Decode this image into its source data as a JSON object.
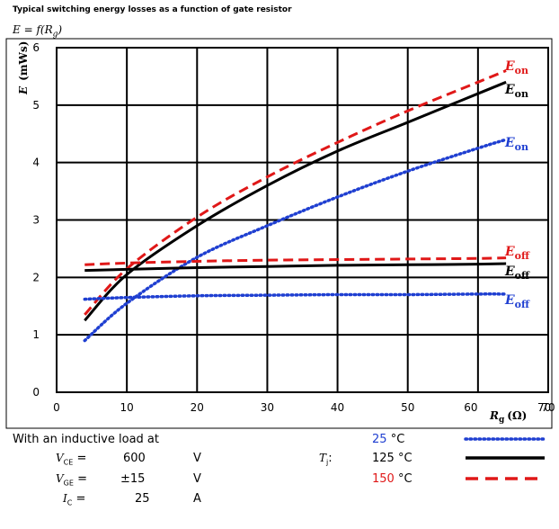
{
  "title": "Typical switching energy losses as a function of gate resistor",
  "function_label": "E = f(R g)",
  "chart_data": {
    "type": "line",
    "ylabel": "E (mWs)",
    "xlabel": "Rg (Ω)",
    "xlim": [
      0,
      70
    ],
    "ylim": [
      0,
      6
    ],
    "x_ticks": [
      0,
      10,
      20,
      30,
      40,
      50,
      60,
      70
    ],
    "y_ticks": [
      0,
      1,
      2,
      3,
      4,
      5,
      6
    ],
    "grid": true,
    "series": [
      {
        "name": "Eon",
        "temperature": "25 °C",
        "style": "dotted",
        "color": "#1f3fd1",
        "x": [
          4,
          10,
          20,
          30,
          40,
          50,
          60,
          64
        ],
        "y": [
          0.9,
          1.55,
          2.35,
          2.9,
          3.4,
          3.85,
          4.25,
          4.4
        ]
      },
      {
        "name": "Eon",
        "temperature": "125 °C",
        "style": "solid",
        "color": "#000000",
        "x": [
          4,
          10,
          20,
          30,
          40,
          50,
          60,
          64
        ],
        "y": [
          1.25,
          2.05,
          2.9,
          3.6,
          4.2,
          4.7,
          5.2,
          5.4
        ]
      },
      {
        "name": "Eon",
        "temperature": "150 °C",
        "style": "dashed",
        "color": "#e01818",
        "x": [
          4,
          10,
          20,
          30,
          40,
          50,
          60,
          64
        ],
        "y": [
          1.35,
          2.15,
          3.05,
          3.75,
          4.35,
          4.9,
          5.4,
          5.6
        ]
      },
      {
        "name": "Eoff",
        "temperature": "25 °C",
        "style": "dotted",
        "color": "#1f3fd1",
        "x": [
          4,
          10,
          20,
          30,
          40,
          50,
          60,
          64
        ],
        "y": [
          1.62,
          1.65,
          1.68,
          1.69,
          1.7,
          1.7,
          1.71,
          1.71
        ]
      },
      {
        "name": "Eoff",
        "temperature": "125 °C",
        "style": "solid",
        "color": "#000000",
        "x": [
          4,
          10,
          20,
          30,
          40,
          50,
          60,
          64
        ],
        "y": [
          2.12,
          2.14,
          2.17,
          2.19,
          2.21,
          2.22,
          2.23,
          2.24
        ]
      },
      {
        "name": "Eoff",
        "temperature": "150 °C",
        "style": "dashed",
        "color": "#e01818",
        "x": [
          4,
          10,
          20,
          30,
          40,
          50,
          60,
          64
        ],
        "y": [
          2.22,
          2.25,
          2.28,
          2.3,
          2.31,
          2.32,
          2.33,
          2.34
        ]
      }
    ],
    "annotations": [
      {
        "text": "Eon",
        "color": "#e01818"
      },
      {
        "text": "Eon",
        "color": "#000000"
      },
      {
        "text": "Eon",
        "color": "#1f3fd1"
      },
      {
        "text": "Eoff",
        "color": "#e01818"
      },
      {
        "text": "Eoff",
        "color": "#000000"
      },
      {
        "text": "Eoff",
        "color": "#1f3fd1"
      }
    ]
  },
  "conditions": {
    "heading": "With an inductive load at",
    "vce_label": "VCE =",
    "vce_value": "600",
    "vce_unit": "V",
    "vge_label": "VGE =",
    "vge_value": "±15",
    "vge_unit": "V",
    "ic_label": "IC =",
    "ic_value": "25",
    "ic_unit": "A",
    "tj_label": "Tj:",
    "temps": [
      {
        "value": "25",
        "unit": "°C",
        "color": "#1f3fd1",
        "style": "dotted"
      },
      {
        "value": "125",
        "unit": "°C",
        "color": "#000000",
        "style": "solid"
      },
      {
        "value": "150",
        "unit": "°C",
        "color": "#e01818",
        "style": "dashed"
      }
    ]
  }
}
